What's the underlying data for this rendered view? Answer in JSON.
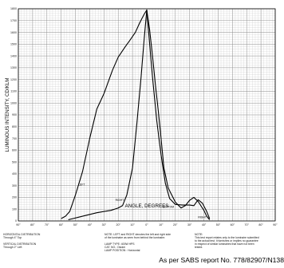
{
  "chart_data": {
    "type": "line",
    "ylabel": "LUMINOUS INTENSITY, CD/KLM",
    "xlabel": "ANGLE, DEGREES",
    "x_ticks": [
      "90°",
      "80°",
      "70°",
      "60°",
      "50°",
      "40°",
      "30°",
      "20°",
      "10°",
      "0°",
      "10°",
      "20°",
      "30°",
      "40°",
      "50°",
      "60°",
      "70°",
      "80°",
      "90°"
    ],
    "y_ticks": [
      "0",
      "100",
      "200",
      "300",
      "400",
      "500",
      "600",
      "700",
      "800",
      "900",
      "1000",
      "1100",
      "1200",
      "1300",
      "1400",
      "1500",
      "1600",
      "1700",
      "1800"
    ],
    "ylim": [
      0,
      1800
    ],
    "xlim": [
      -90,
      90
    ],
    "grid": true,
    "series": [
      {
        "name": "LEFT",
        "x": [
          -60,
          -57,
          -54,
          -50,
          -45,
          -40,
          -35,
          -30,
          -27,
          -24,
          -20,
          -15,
          -12,
          -8,
          -5,
          -2,
          0,
          2,
          4,
          6,
          8,
          10,
          12,
          15,
          20,
          24,
          27,
          30,
          33,
          36,
          40,
          42,
          44
        ],
        "y": [
          20,
          40,
          80,
          220,
          420,
          700,
          950,
          1080,
          1180,
          1280,
          1390,
          1480,
          1530,
          1600,
          1680,
          1750,
          1790,
          1620,
          1400,
          1160,
          940,
          700,
          450,
          280,
          160,
          110,
          130,
          175,
          200,
          165,
          90,
          40,
          10
        ]
      },
      {
        "name": "RIGHT",
        "x": [
          -55,
          -45,
          -35,
          -25,
          -20,
          -17,
          -14,
          -10,
          -7,
          -4,
          -2,
          0,
          2,
          4,
          7,
          10,
          13,
          16,
          20,
          25,
          30,
          33,
          36,
          39,
          42,
          44
        ],
        "y": [
          10,
          40,
          70,
          90,
          110,
          130,
          220,
          450,
          820,
          1220,
          1520,
          1790,
          1500,
          1220,
          850,
          560,
          320,
          190,
          140,
          135,
          135,
          130,
          180,
          150,
          80,
          20
        ]
      }
    ],
    "annotations": [
      "LEFT",
      "RIGHT",
      "BOTTOM",
      "RIGHT"
    ]
  },
  "notes": {
    "horizontal_title": "HORIZONTAL DISTRIBUTION",
    "horizontal_value": "Through 4° Top",
    "vertical_title": "VERTICAL DISTRIBUTION",
    "vertical_value": "Through 2° Left",
    "note_lr_1": "NOTE: LEFT and RIGHT denotes the left and right side",
    "note_lr_2": "of the luminaire as seen from behind the luminaire.",
    "lamp_type": "LAMP TYPE: 400W HPS",
    "cat_no": "CAT. NO.: Osram",
    "lamp_position": "LAMP POSITION : Horizontal",
    "disclaimer_title": "NOTE:",
    "disclaimer_1": "This test report relates only to the luminaire submitted",
    "disclaimer_2": "to the actual test. It furnishes or implies no guarantee",
    "disclaimer_3": "in respect of similar luminaires that have not been",
    "disclaimer_4": "tested."
  },
  "footer": "As per SABS report No. 778/82907/N138"
}
